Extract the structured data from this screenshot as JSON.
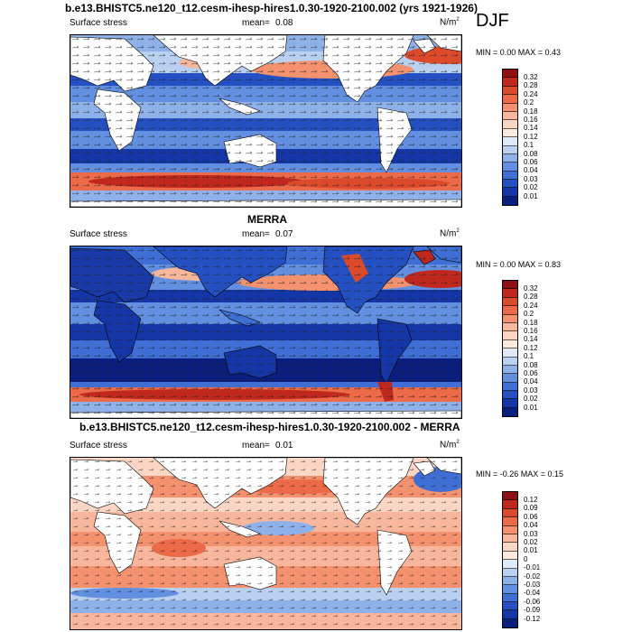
{
  "season": "DJF",
  "panels": [
    {
      "title": "b.e13.BHISTC5.ne120_t12.cesm-ihesp-hires1.0.30-1920-2100.002 (yrs 1921-1926)",
      "left": "Surface stress",
      "mean_label": "mean=",
      "mean": "0.08",
      "unit": "N/m",
      "unit_sup": "2",
      "minmax": "MIN =   0.00 MAX =   0.43",
      "levels": [
        "0.32",
        "0.28",
        "0.24",
        "0.2",
        "0.18",
        "0.16",
        "0.14",
        "0.12",
        "0.1",
        "0.08",
        "0.06",
        "0.04",
        "0.03",
        "0.02",
        "0.01"
      ],
      "colors": [
        "#8e0f14",
        "#c0281d",
        "#db4a2b",
        "#ec6a47",
        "#f4926f",
        "#f8b79d",
        "#fbd6c4",
        "#fbebdf",
        "#dfe9f8",
        "#b9d0f1",
        "#8fb1ea",
        "#628fe0",
        "#3f6fd5",
        "#2450c2",
        "#1436a6",
        "#0a1e7d"
      ]
    },
    {
      "title": "MERRA",
      "left": "Surface stress",
      "mean_label": "mean=",
      "mean": "0.07",
      "unit": "N/m",
      "unit_sup": "2",
      "minmax": "MIN =   0.00 MAX =   0.83",
      "levels": [
        "0.32",
        "0.28",
        "0.24",
        "0.2",
        "0.18",
        "0.16",
        "0.14",
        "0.12",
        "0.1",
        "0.08",
        "0.06",
        "0.04",
        "0.03",
        "0.02",
        "0.01"
      ],
      "colors": [
        "#8e0f14",
        "#c0281d",
        "#db4a2b",
        "#ec6a47",
        "#f4926f",
        "#f8b79d",
        "#fbd6c4",
        "#fbebdf",
        "#dfe9f8",
        "#b9d0f1",
        "#8fb1ea",
        "#628fe0",
        "#3f6fd5",
        "#2450c2",
        "#1436a6",
        "#0a1e7d"
      ]
    },
    {
      "title": "b.e13.BHISTC5.ne120_t12.cesm-ihesp-hires1.0.30-1920-2100.002 - MERRA",
      "left": "Surface stress",
      "mean_label": "mean=",
      "mean": "0.01",
      "unit": "N/m",
      "unit_sup": "2",
      "minmax": "MIN = -0.26 MAX =   0.15",
      "levels": [
        "0.12",
        "0.09",
        "0.06",
        "0.04",
        "0.03",
        "0.02",
        "0.01",
        "0",
        "-0.01",
        "-0.02",
        "-0.03",
        "-0.04",
        "-0.06",
        "-0.09",
        "-0.12"
      ],
      "colors": [
        "#8e0f14",
        "#c0281d",
        "#db4a2b",
        "#ec6a47",
        "#f4926f",
        "#f8b79d",
        "#fbd6c4",
        "#fbebdf",
        "#dfe9f8",
        "#b9d0f1",
        "#8fb1ea",
        "#628fe0",
        "#3f6fd5",
        "#2450c2",
        "#1436a6",
        "#0a1e7d"
      ]
    }
  ],
  "map_colors": {
    "strong_red": "#e0533b",
    "light_red": "#f4a58a",
    "pale": "#f3f1f0",
    "light_blue": "#8fb1ea",
    "mid_blue": "#3f6fd5",
    "deep_blue": "#1a3aa8",
    "land": "#ffffff"
  }
}
